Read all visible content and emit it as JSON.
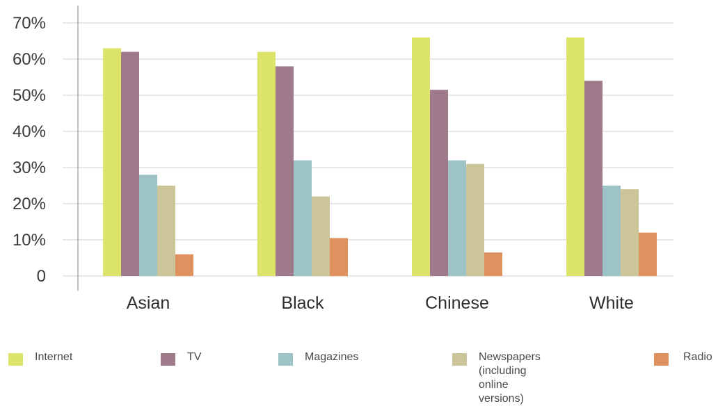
{
  "chart_data": {
    "type": "bar",
    "categories": [
      "Asian",
      "Black",
      "Chinese",
      "White"
    ],
    "series": [
      {
        "name": "Internet",
        "color": "#dde46a",
        "values": [
          63,
          62,
          66,
          66
        ]
      },
      {
        "name": "TV",
        "color": "#9e7a8a",
        "values": [
          62,
          58,
          51.5,
          54
        ]
      },
      {
        "name": "Magazines",
        "color": "#9ec3c6",
        "values": [
          28,
          32,
          32,
          25
        ]
      },
      {
        "name": "Newspapers\n(including\nonline versions)",
        "color": "#cdc59a",
        "values": [
          25,
          22,
          31,
          24
        ]
      },
      {
        "name": "Radio",
        "color": "#df9160",
        "values": [
          6,
          10.5,
          6.5,
          12
        ]
      }
    ],
    "y_ticks": [
      "0",
      "10%",
      "20%",
      "30%",
      "40%",
      "50%",
      "60%",
      "70%"
    ],
    "ylim": [
      0,
      70
    ],
    "grid": true,
    "legend_position": "bottom",
    "title": "",
    "xlabel": "",
    "ylabel": ""
  }
}
